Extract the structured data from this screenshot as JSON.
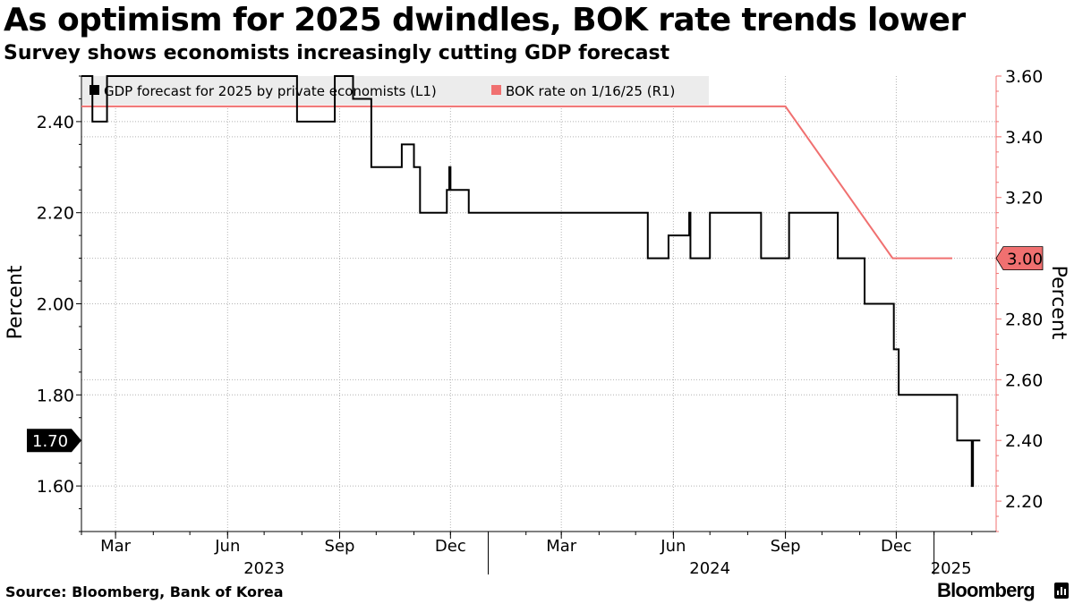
{
  "header": {
    "title": "As optimism for 2025 dwindles, BOK rate trends lower",
    "subtitle": "Survey shows economists increasingly cutting GDP forecast"
  },
  "footer": {
    "source": "Source: Bloomberg, Bank of Korea",
    "brand": "Bloomberg"
  },
  "colors": {
    "gdp_line": "#000000",
    "bok_line": "#f07070",
    "right_axis": "#f07070",
    "grid": "#b4b4b4",
    "legend_bg": "#ececec"
  },
  "chart_data": {
    "type": "line",
    "title": "As optimism for 2025 dwindles, BOK rate trends lower",
    "subtitle": "Survey shows economists increasingly cutting GDP forecast",
    "legend_position": "top-left",
    "x_range": [
      "2023-02-01",
      "2025-02-21"
    ],
    "x_ticks": [
      {
        "date": "2023-03-01",
        "label": "Mar"
      },
      {
        "date": "2023-06-01",
        "label": "Jun"
      },
      {
        "date": "2023-09-01",
        "label": "Sep"
      },
      {
        "date": "2023-12-01",
        "label": "Dec"
      },
      {
        "date": "2024-03-01",
        "label": "Mar"
      },
      {
        "date": "2024-06-01",
        "label": "Jun"
      },
      {
        "date": "2024-09-01",
        "label": "Sep"
      },
      {
        "date": "2024-12-01",
        "label": "Dec"
      }
    ],
    "year_labels": [
      {
        "date": "2023-07-01",
        "label": "2023"
      },
      {
        "date": "2024-07-01",
        "label": "2024"
      },
      {
        "date": "2025-01-15",
        "label": "2025"
      }
    ],
    "left_axis": {
      "label": "Percent",
      "ylim": [
        1.5,
        2.5
      ],
      "ticks": [
        1.6,
        1.8,
        2.0,
        2.2,
        2.4
      ],
      "tick_labels": [
        "1.60",
        "1.80",
        "2.00",
        "2.20",
        "2.40"
      ]
    },
    "right_axis": {
      "label": "Percent",
      "ylim": [
        2.1,
        3.6
      ],
      "ticks": [
        2.2,
        2.4,
        2.6,
        2.8,
        3.0,
        3.2,
        3.4,
        3.6
      ],
      "tick_labels": [
        "2.20",
        "2.40",
        "2.60",
        "2.80",
        "3.00",
        "3.20",
        "3.40",
        "3.60"
      ]
    },
    "series": [
      {
        "name": "GDP forecast for 2025 by private economists (L1)",
        "axis": "left",
        "step": true,
        "last_value_label": "1.70",
        "points": [
          [
            "2023-02-01",
            2.5
          ],
          [
            "2023-02-10",
            2.4
          ],
          [
            "2023-02-22",
            2.5
          ],
          [
            "2023-07-28",
            2.4
          ],
          [
            "2023-08-28",
            2.5
          ],
          [
            "2023-09-12",
            2.45
          ],
          [
            "2023-09-27",
            2.3
          ],
          [
            "2023-10-22",
            2.35
          ],
          [
            "2023-11-01",
            2.3
          ],
          [
            "2023-11-06",
            2.2
          ],
          [
            "2023-11-28",
            2.25
          ],
          [
            "2023-11-30",
            2.3
          ],
          [
            "2023-12-01",
            2.25
          ],
          [
            "2023-12-16",
            2.2
          ],
          [
            "2024-05-11",
            2.1
          ],
          [
            "2024-05-28",
            2.15
          ],
          [
            "2024-06-14",
            2.2
          ],
          [
            "2024-06-15",
            2.1
          ],
          [
            "2024-07-01",
            2.2
          ],
          [
            "2024-08-12",
            2.1
          ],
          [
            "2024-09-04",
            2.2
          ],
          [
            "2024-10-14",
            2.1
          ],
          [
            "2024-11-05",
            2.0
          ],
          [
            "2024-11-29",
            1.9
          ],
          [
            "2024-12-03",
            1.8
          ],
          [
            "2025-01-20",
            1.7
          ],
          [
            "2025-02-01",
            1.6
          ],
          [
            "2025-02-02",
            1.7
          ]
        ],
        "end_date": "2025-02-08"
      },
      {
        "name": "BOK rate on 1/16/25 (R1)",
        "axis": "right",
        "step": false,
        "last_value_label": "3.00",
        "points": [
          [
            "2023-02-01",
            3.5
          ],
          [
            "2024-09-01",
            3.5
          ],
          [
            "2024-11-28",
            3.0
          ],
          [
            "2025-01-16",
            3.0
          ]
        ]
      }
    ]
  }
}
